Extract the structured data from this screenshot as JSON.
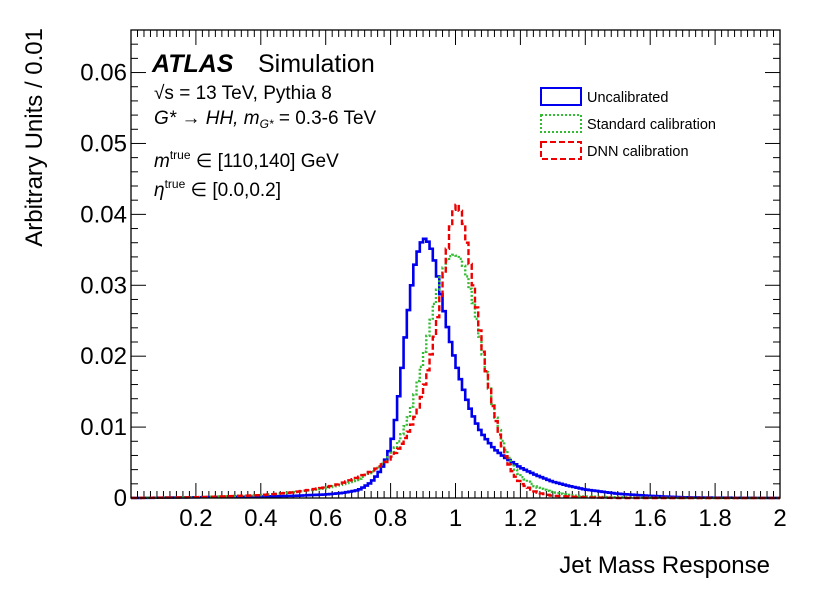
{
  "chart_data": {
    "type": "line",
    "xlabel": "Jet Mass Response",
    "ylabel": "Arbitrary Units / 0.01",
    "xlim": [
      0,
      2
    ],
    "ylim": [
      0,
      0.066
    ],
    "xticks": [
      "0.2",
      "0.4",
      "0.6",
      "0.8",
      "1",
      "1.2",
      "1.4",
      "1.6",
      "1.8",
      "2"
    ],
    "yticks": [
      "0",
      "0.01",
      "0.02",
      "0.03",
      "0.04",
      "0.05",
      "0.06"
    ],
    "ann": {
      "atlas": "ATLAS",
      "simulation": "Simulation",
      "sqrt_s_label": "√s = 13 TeV, Pythia 8",
      "process_a": "G* → HH, m",
      "process_sub": "G*",
      "process_b": " = 0.3-6 TeV",
      "mass_var": "m",
      "mass_sup": "true",
      "mass_range": " ∈ [110,140] GeV",
      "eta_var": "η",
      "eta_sup": "true",
      "eta_range": " ∈ [0.0,0.2]"
    },
    "legend_position": "top-right",
    "series": [
      {
        "name": "Uncalibrated",
        "color": "#0000ee",
        "style": "solid",
        "x": [
          0.0,
          0.2,
          0.4,
          0.5,
          0.55,
          0.6,
          0.65,
          0.7,
          0.72,
          0.74,
          0.76,
          0.78,
          0.8,
          0.81,
          0.82,
          0.83,
          0.84,
          0.85,
          0.86,
          0.87,
          0.88,
          0.89,
          0.9,
          0.91,
          0.92,
          0.93,
          0.94,
          0.95,
          0.96,
          0.97,
          0.98,
          0.99,
          1.0,
          1.01,
          1.02,
          1.03,
          1.04,
          1.05,
          1.06,
          1.07,
          1.08,
          1.1,
          1.12,
          1.15,
          1.18,
          1.2,
          1.25,
          1.3,
          1.35,
          1.4,
          1.5,
          1.6,
          1.7,
          1.8,
          2.0
        ],
        "values": [
          0.0,
          0.0001,
          0.0002,
          0.0003,
          0.0004,
          0.0005,
          0.0007,
          0.0011,
          0.0016,
          0.0022,
          0.0033,
          0.0048,
          0.0072,
          0.0095,
          0.0125,
          0.0162,
          0.0205,
          0.0248,
          0.0282,
          0.0318,
          0.034,
          0.0355,
          0.0366,
          0.0365,
          0.0358,
          0.0345,
          0.0325,
          0.03,
          0.0275,
          0.0252,
          0.023,
          0.021,
          0.0192,
          0.0175,
          0.016,
          0.0145,
          0.0132,
          0.012,
          0.011,
          0.01,
          0.0092,
          0.008,
          0.0069,
          0.0058,
          0.0049,
          0.0043,
          0.0032,
          0.0023,
          0.0017,
          0.0012,
          0.0006,
          0.0003,
          0.0001,
          5e-05,
          0.0
        ]
      },
      {
        "name": "Standard calibration",
        "color": "#33bb33",
        "style": "dotted",
        "x": [
          0.0,
          0.2,
          0.4,
          0.5,
          0.6,
          0.65,
          0.7,
          0.75,
          0.78,
          0.8,
          0.82,
          0.84,
          0.86,
          0.88,
          0.9,
          0.92,
          0.94,
          0.96,
          0.98,
          1.0,
          1.02,
          1.04,
          1.06,
          1.08,
          1.1,
          1.12,
          1.14,
          1.16,
          1.18,
          1.2,
          1.25,
          1.3,
          1.35,
          1.4,
          1.5,
          1.6,
          1.7,
          1.8,
          2.0
        ],
        "values": [
          0.0,
          0.0001,
          0.0004,
          0.0008,
          0.0014,
          0.0019,
          0.0026,
          0.0039,
          0.005,
          0.006,
          0.0075,
          0.0095,
          0.012,
          0.0155,
          0.0195,
          0.024,
          0.0285,
          0.032,
          0.034,
          0.0344,
          0.0335,
          0.0305,
          0.0265,
          0.0215,
          0.0165,
          0.0122,
          0.0087,
          0.0061,
          0.0043,
          0.0031,
          0.0015,
          0.0008,
          0.0004,
          0.0002,
          0.0001,
          5e-05,
          0.0,
          0.0,
          0.0
        ]
      },
      {
        "name": "DNN calibration",
        "color": "#ee0000",
        "style": "dashed",
        "x": [
          0.0,
          0.2,
          0.4,
          0.5,
          0.6,
          0.65,
          0.7,
          0.75,
          0.78,
          0.8,
          0.82,
          0.84,
          0.86,
          0.88,
          0.9,
          0.92,
          0.94,
          0.96,
          0.97,
          0.98,
          0.99,
          1.0,
          1.01,
          1.02,
          1.03,
          1.04,
          1.06,
          1.08,
          1.1,
          1.12,
          1.14,
          1.16,
          1.18,
          1.2,
          1.25,
          1.3,
          1.4,
          1.5,
          1.6,
          2.0
        ],
        "values": [
          0.0,
          0.0001,
          0.0004,
          0.0008,
          0.0015,
          0.0021,
          0.0029,
          0.004,
          0.0049,
          0.0056,
          0.0066,
          0.008,
          0.0098,
          0.012,
          0.015,
          0.019,
          0.024,
          0.03,
          0.0335,
          0.0368,
          0.0398,
          0.0415,
          0.0412,
          0.0398,
          0.0375,
          0.0345,
          0.0285,
          0.022,
          0.0165,
          0.0118,
          0.008,
          0.0052,
          0.0033,
          0.0021,
          0.0008,
          0.0003,
          0.0001,
          0.0,
          0.0,
          0.0
        ]
      }
    ]
  }
}
